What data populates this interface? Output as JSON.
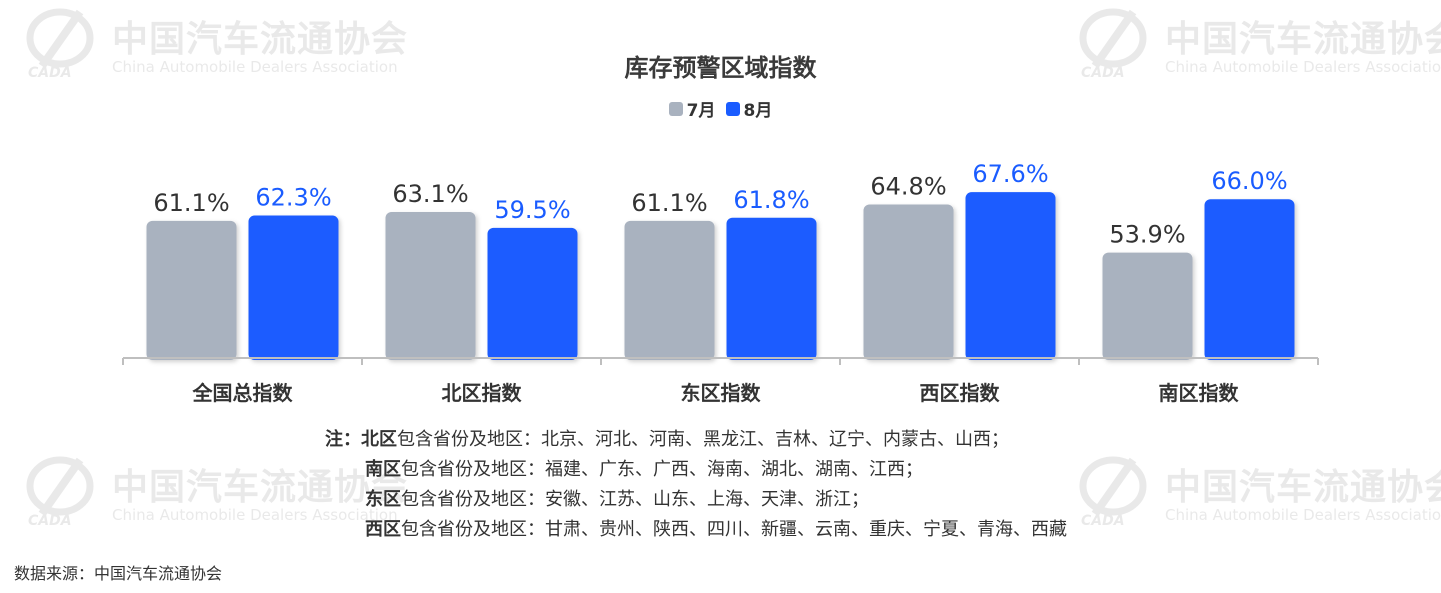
{
  "watermark": {
    "cn": "中国汽车流通协会",
    "en": "China Automobile Dealers Association",
    "logo_text": "CADA"
  },
  "chart_data": {
    "type": "bar",
    "title": "库存预警区域指数",
    "categories": [
      "全国总指数",
      "北区指数",
      "东区指数",
      "西区指数",
      "南区指数"
    ],
    "series": [
      {
        "name": "7月",
        "color": "#a9b2bf",
        "label_color": "#333333",
        "values": [
          61.1,
          63.1,
          61.1,
          64.8,
          53.9
        ],
        "labels": [
          "61.1%",
          "63.1%",
          "61.1%",
          "64.8%",
          "53.9%"
        ]
      },
      {
        "name": "8月",
        "color": "#1a5cff",
        "label_color": "#1a5cff",
        "values": [
          62.3,
          59.5,
          61.8,
          67.6,
          66.0
        ],
        "labels": [
          "62.3%",
          "59.5%",
          "61.8%",
          "67.6%",
          "66.0%"
        ]
      }
    ],
    "ylim": [
      0,
      100
    ],
    "grid": false,
    "legend": "top-center"
  },
  "notes": {
    "prefix": "注：",
    "rows": [
      {
        "region": "北区",
        "text": "包含省份及地区：北京、河北、河南、黑龙江、吉林、辽宁、内蒙古、山西；"
      },
      {
        "region": "南区",
        "text": "包含省份及地区：福建、广东、广西、海南、湖北、湖南、江西；"
      },
      {
        "region": "东区",
        "text": "包含省份及地区：安徽、江苏、山东、上海、天津、浙江；"
      },
      {
        "region": "西区",
        "text": "包含省份及地区：甘肃、贵州、陕西、四川、新疆、云南、重庆、宁夏、青海、西藏"
      }
    ]
  },
  "source": "数据来源：中国汽车流通协会"
}
